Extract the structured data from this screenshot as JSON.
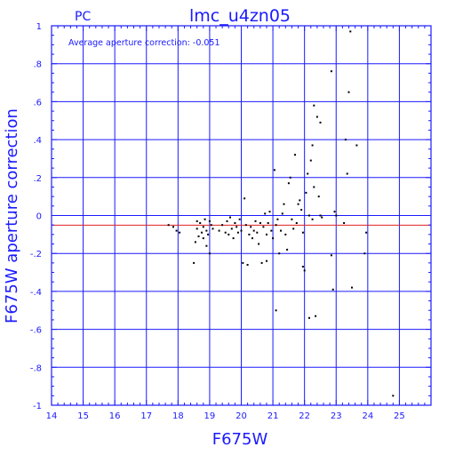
{
  "chart_data": {
    "type": "scatter",
    "title": "lmc_u4zn05",
    "corner_label": "PC",
    "annotation": "Average aperture correction: -0.051",
    "xlabel": "F675W",
    "ylabel": "F675W aperture correction",
    "xlim": [
      14,
      26
    ],
    "ylim": [
      -1,
      1
    ],
    "x_ticks": [
      14,
      15,
      16,
      17,
      18,
      19,
      20,
      21,
      22,
      23,
      24,
      25
    ],
    "y_ticks": [
      -1,
      -0.8,
      -0.6,
      -0.4,
      -0.2,
      0,
      0.2,
      0.4,
      0.6,
      0.8,
      1
    ],
    "grid": true,
    "reference_lines": [
      {
        "name": "zero",
        "y": 0,
        "color": "#1a1aff"
      },
      {
        "name": "average",
        "y": -0.051,
        "color": "#e02020"
      }
    ],
    "points": [
      [
        17.7,
        -0.05
      ],
      [
        17.85,
        -0.06
      ],
      [
        17.95,
        -0.08
      ],
      [
        18.05,
        -0.09
      ],
      [
        18.5,
        -0.25
      ],
      [
        18.55,
        -0.14
      ],
      [
        18.6,
        -0.07
      ],
      [
        18.6,
        -0.03
      ],
      [
        18.65,
        -0.11
      ],
      [
        18.7,
        -0.04
      ],
      [
        18.75,
        -0.09
      ],
      [
        18.8,
        -0.06
      ],
      [
        18.8,
        -0.12
      ],
      [
        18.85,
        -0.02
      ],
      [
        18.9,
        -0.08
      ],
      [
        18.9,
        -0.16
      ],
      [
        18.95,
        -0.1
      ],
      [
        19.0,
        -0.2
      ],
      [
        19.0,
        -0.03
      ],
      [
        19.05,
        -0.05
      ],
      [
        19.1,
        -0.07
      ],
      [
        19.3,
        -0.08
      ],
      [
        19.4,
        -0.05
      ],
      [
        19.5,
        -0.09
      ],
      [
        19.55,
        -0.03
      ],
      [
        19.6,
        -0.1
      ],
      [
        19.65,
        -0.01
      ],
      [
        19.7,
        -0.07
      ],
      [
        19.75,
        -0.12
      ],
      [
        19.8,
        -0.04
      ],
      [
        19.85,
        -0.06
      ],
      [
        19.9,
        -0.09
      ],
      [
        19.95,
        -0.02
      ],
      [
        20.0,
        -0.08
      ],
      [
        20.05,
        -0.25
      ],
      [
        20.1,
        0.09
      ],
      [
        20.15,
        -0.05
      ],
      [
        20.2,
        -0.26
      ],
      [
        20.25,
        -0.1
      ],
      [
        20.3,
        -0.06
      ],
      [
        20.35,
        -0.12
      ],
      [
        20.4,
        -0.08
      ],
      [
        20.45,
        -0.03
      ],
      [
        20.5,
        -0.09
      ],
      [
        20.55,
        -0.15
      ],
      [
        20.6,
        -0.04
      ],
      [
        20.65,
        -0.25
      ],
      [
        20.7,
        -0.06
      ],
      [
        20.75,
        0.01
      ],
      [
        20.8,
        -0.1
      ],
      [
        20.8,
        -0.24
      ],
      [
        20.85,
        -0.04
      ],
      [
        20.9,
        0.02
      ],
      [
        20.95,
        -0.08
      ],
      [
        21.0,
        -0.12
      ],
      [
        21.05,
        0.24
      ],
      [
        21.1,
        -0.05
      ],
      [
        21.1,
        -0.5
      ],
      [
        21.15,
        -0.02
      ],
      [
        21.2,
        -0.2
      ],
      [
        21.25,
        -0.08
      ],
      [
        21.3,
        0.01
      ],
      [
        21.35,
        0.06
      ],
      [
        21.4,
        -0.1
      ],
      [
        21.45,
        -0.18
      ],
      [
        21.5,
        0.17
      ],
      [
        21.55,
        0.2
      ],
      [
        21.6,
        -0.02
      ],
      [
        21.65,
        -0.07
      ],
      [
        21.7,
        0.32
      ],
      [
        21.75,
        -0.04
      ],
      [
        21.8,
        0.06
      ],
      [
        21.85,
        0.08
      ],
      [
        21.9,
        0.03
      ],
      [
        21.95,
        -0.09
      ],
      [
        21.95,
        -0.27
      ],
      [
        22.0,
        -0.29
      ],
      [
        22.05,
        0.12
      ],
      [
        22.1,
        0.22
      ],
      [
        22.15,
        -0.54
      ],
      [
        22.15,
        0.0
      ],
      [
        22.2,
        0.29
      ],
      [
        22.25,
        0.37
      ],
      [
        22.25,
        -0.02
      ],
      [
        22.3,
        0.58
      ],
      [
        22.3,
        0.15
      ],
      [
        22.35,
        -0.53
      ],
      [
        22.4,
        0.52
      ],
      [
        22.45,
        0.1
      ],
      [
        22.5,
        0.49
      ],
      [
        22.5,
        0.0
      ],
      [
        22.55,
        -0.01
      ],
      [
        22.85,
        0.76
      ],
      [
        22.85,
        -0.21
      ],
      [
        22.9,
        -0.39
      ],
      [
        22.95,
        0.02
      ],
      [
        23.0,
        0.0
      ],
      [
        23.25,
        -0.04
      ],
      [
        23.3,
        0.4
      ],
      [
        23.35,
        0.22
      ],
      [
        23.4,
        0.65
      ],
      [
        23.45,
        0.97
      ],
      [
        23.5,
        -0.38
      ],
      [
        23.65,
        0.37
      ],
      [
        23.9,
        -0.2
      ],
      [
        23.95,
        -0.09
      ],
      [
        24.8,
        -0.95
      ]
    ]
  }
}
